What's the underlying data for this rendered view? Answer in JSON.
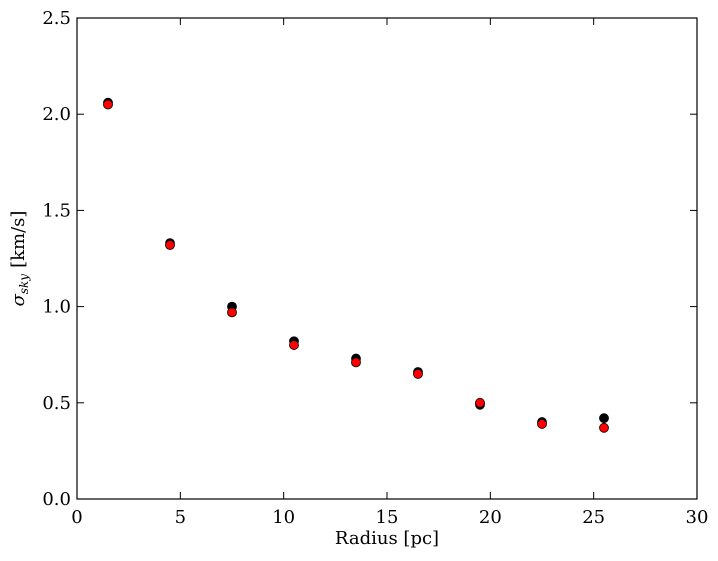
{
  "chart_data": {
    "type": "scatter",
    "title": "",
    "xlabel": "Radius [pc]",
    "ylabel": {
      "symbol": "σ",
      "subscript": "sky",
      "unit": "[km/s]"
    },
    "xlim": [
      0,
      30
    ],
    "ylim": [
      0.0,
      2.5
    ],
    "xticks": [
      0,
      5,
      10,
      15,
      20,
      25,
      30
    ],
    "xtick_labels": [
      "0",
      "5",
      "10",
      "15",
      "20",
      "25",
      "30"
    ],
    "yticks": [
      0.0,
      0.5,
      1.0,
      1.5,
      2.0,
      2.5
    ],
    "ytick_labels": [
      "0.0",
      "0.5",
      "1.0",
      "1.5",
      "2.0",
      "2.5"
    ],
    "grid": false,
    "legend": "none",
    "series": [
      {
        "color": "#000000",
        "x": [
          1.5,
          4.5,
          7.5,
          10.5,
          13.5,
          16.5,
          19.5,
          22.5,
          25.5
        ],
        "y": [
          2.06,
          1.33,
          1.0,
          0.82,
          0.73,
          0.66,
          0.49,
          0.4,
          0.42
        ]
      },
      {
        "color": "#ff0000",
        "x": [
          1.5,
          4.5,
          7.5,
          10.5,
          13.5,
          16.5,
          19.5,
          22.5,
          25.5
        ],
        "y": [
          2.05,
          1.32,
          0.97,
          0.8,
          0.71,
          0.65,
          0.5,
          0.39,
          0.37
        ]
      }
    ]
  }
}
